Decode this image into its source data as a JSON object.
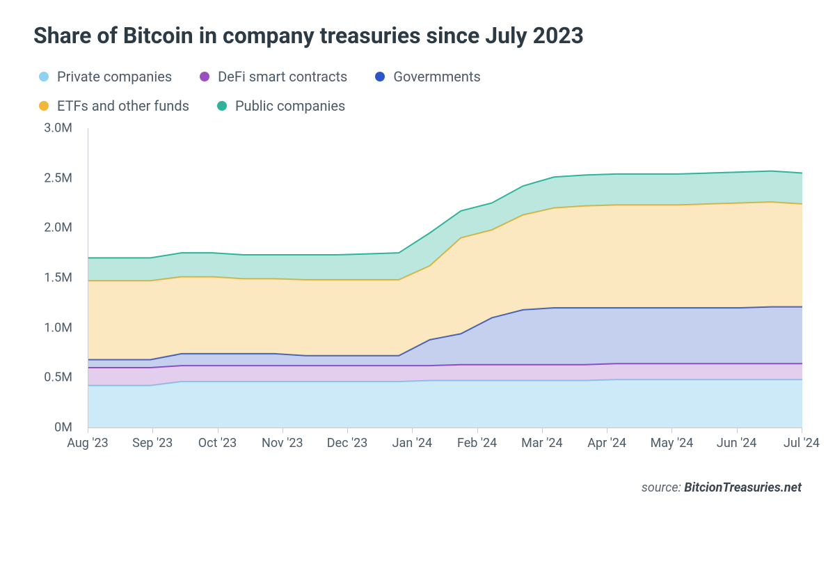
{
  "chart": {
    "type": "area-stacked",
    "title": "Share of Bitcoin in company treasuries since July 2023",
    "source_prefix": "source: ",
    "source_site": "BitcionTreasuries.net",
    "background_color": "#ffffff",
    "title_color": "#2b3a44",
    "title_fontsize": 32,
    "label_color": "#4a5a66",
    "label_fontsize": 18,
    "axis_color": "#c8ccd0",
    "ylim": [
      0,
      3.0
    ],
    "ytick_step": 0.5,
    "y_ticks": [
      "0M",
      "0.5M",
      "1.0M",
      "1.5M",
      "2.0M",
      "2.5M",
      "3.0M"
    ],
    "x_labels": [
      "Aug '23",
      "Sep '23",
      "Oct '23",
      "Nov '23",
      "Dec '23",
      "Jan '24",
      "Feb '24",
      "Mar '24",
      "Apr '24",
      "May '24",
      "Jun '24",
      "Jul '24"
    ],
    "series": [
      {
        "key": "private_companies",
        "label": "Private companies",
        "color": "#8fd1f0",
        "fill": "rgba(143,209,240,0.45)",
        "values": [
          0.42,
          0.42,
          0.42,
          0.46,
          0.46,
          0.46,
          0.46,
          0.46,
          0.46,
          0.46,
          0.46,
          0.47,
          0.47,
          0.47,
          0.47,
          0.47,
          0.47,
          0.48,
          0.48,
          0.48,
          0.48,
          0.48,
          0.48,
          0.48
        ]
      },
      {
        "key": "defi",
        "label": "DeFi smart contracts",
        "color": "#9a4fbf",
        "fill": "rgba(154,79,191,0.28)",
        "values": [
          0.6,
          0.6,
          0.6,
          0.62,
          0.62,
          0.62,
          0.62,
          0.62,
          0.62,
          0.62,
          0.62,
          0.62,
          0.63,
          0.63,
          0.63,
          0.63,
          0.63,
          0.64,
          0.64,
          0.64,
          0.64,
          0.64,
          0.64,
          0.64
        ]
      },
      {
        "key": "governments",
        "label": "Govermments",
        "color": "#2e55c7",
        "fill": "rgba(46,85,199,0.28)",
        "values": [
          0.68,
          0.68,
          0.68,
          0.74,
          0.74,
          0.74,
          0.74,
          0.72,
          0.72,
          0.72,
          0.72,
          0.88,
          0.94,
          1.1,
          1.18,
          1.2,
          1.2,
          1.2,
          1.2,
          1.2,
          1.2,
          1.2,
          1.21,
          1.21
        ]
      },
      {
        "key": "etfs",
        "label": "ETFs and other funds",
        "color": "#f2b63a",
        "fill": "rgba(242,182,58,0.32)",
        "values": [
          1.47,
          1.47,
          1.47,
          1.51,
          1.51,
          1.49,
          1.49,
          1.48,
          1.48,
          1.48,
          1.48,
          1.62,
          1.9,
          1.98,
          2.13,
          2.2,
          2.22,
          2.23,
          2.23,
          2.23,
          2.24,
          2.25,
          2.26,
          2.24
        ]
      },
      {
        "key": "public_companies",
        "label": "Public companies",
        "color": "#2fb39b",
        "fill": "rgba(47,179,155,0.32)",
        "values": [
          1.7,
          1.7,
          1.7,
          1.75,
          1.75,
          1.73,
          1.73,
          1.73,
          1.73,
          1.74,
          1.75,
          1.95,
          2.17,
          2.25,
          2.42,
          2.51,
          2.53,
          2.54,
          2.54,
          2.54,
          2.55,
          2.56,
          2.57,
          2.55
        ]
      }
    ],
    "legend_order": [
      "private_companies",
      "defi",
      "governments",
      "etfs",
      "public_companies"
    ],
    "line_width": 2,
    "n_points": 24
  }
}
